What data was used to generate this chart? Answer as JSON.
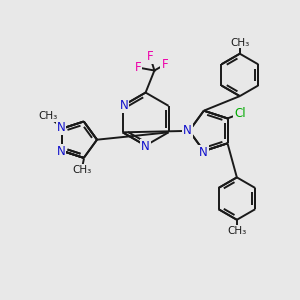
{
  "bg_color": "#e8e8e8",
  "bond_color": "#1a1a1a",
  "n_color": "#1010cc",
  "f_color": "#ee00aa",
  "cl_color": "#00aa00",
  "lw": 1.4,
  "fs": 8.5,
  "fig_size": [
    3.0,
    3.0
  ],
  "dpi": 100,
  "xlim": [
    0,
    10
  ],
  "ylim": [
    0,
    10
  ]
}
